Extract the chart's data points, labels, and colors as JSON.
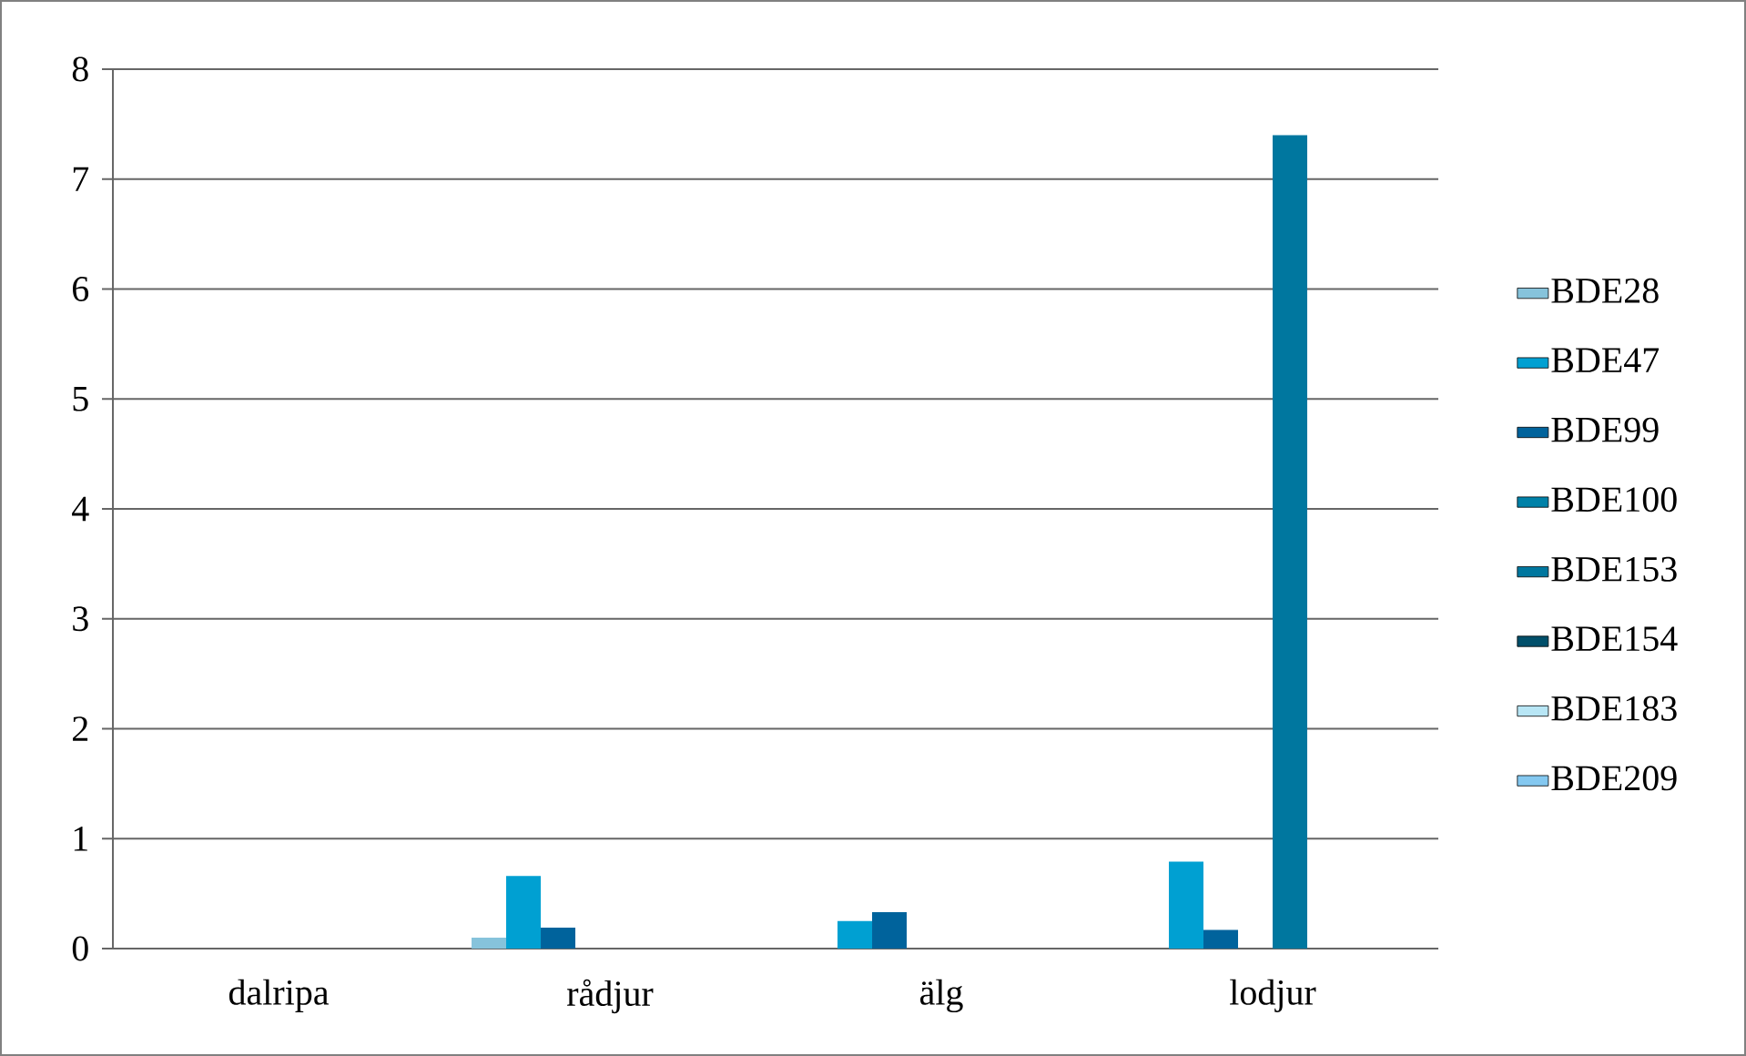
{
  "chart_data": {
    "type": "bar",
    "categories": [
      "dalripa",
      "rådjur",
      "älg",
      "lodjur"
    ],
    "series": [
      {
        "name": "BDE28",
        "color": "#86c3db",
        "values": [
          null,
          0.1,
          null,
          null
        ]
      },
      {
        "name": "BDE47",
        "color": "#00a0d2",
        "values": [
          null,
          0.66,
          0.25,
          0.79
        ]
      },
      {
        "name": "BDE99",
        "color": "#00639c",
        "values": [
          null,
          0.19,
          0.33,
          0.17
        ]
      },
      {
        "name": "BDE100",
        "color": "#0081a8",
        "values": [
          null,
          null,
          null,
          null
        ]
      },
      {
        "name": "BDE153",
        "color": "#00779f",
        "values": [
          null,
          null,
          null,
          7.4
        ]
      },
      {
        "name": "BDE154",
        "color": "#004f6a",
        "values": [
          null,
          null,
          null,
          null
        ]
      },
      {
        "name": "BDE183",
        "color": "#b8e6f5",
        "values": [
          null,
          null,
          null,
          null
        ]
      },
      {
        "name": "BDE209",
        "color": "#84c8f0",
        "values": [
          null,
          null,
          null,
          null
        ]
      }
    ],
    "ylim": [
      0,
      8
    ],
    "yticks": [
      0,
      1,
      2,
      3,
      4,
      5,
      6,
      7,
      8
    ],
    "grid": "y",
    "legend": "right"
  }
}
